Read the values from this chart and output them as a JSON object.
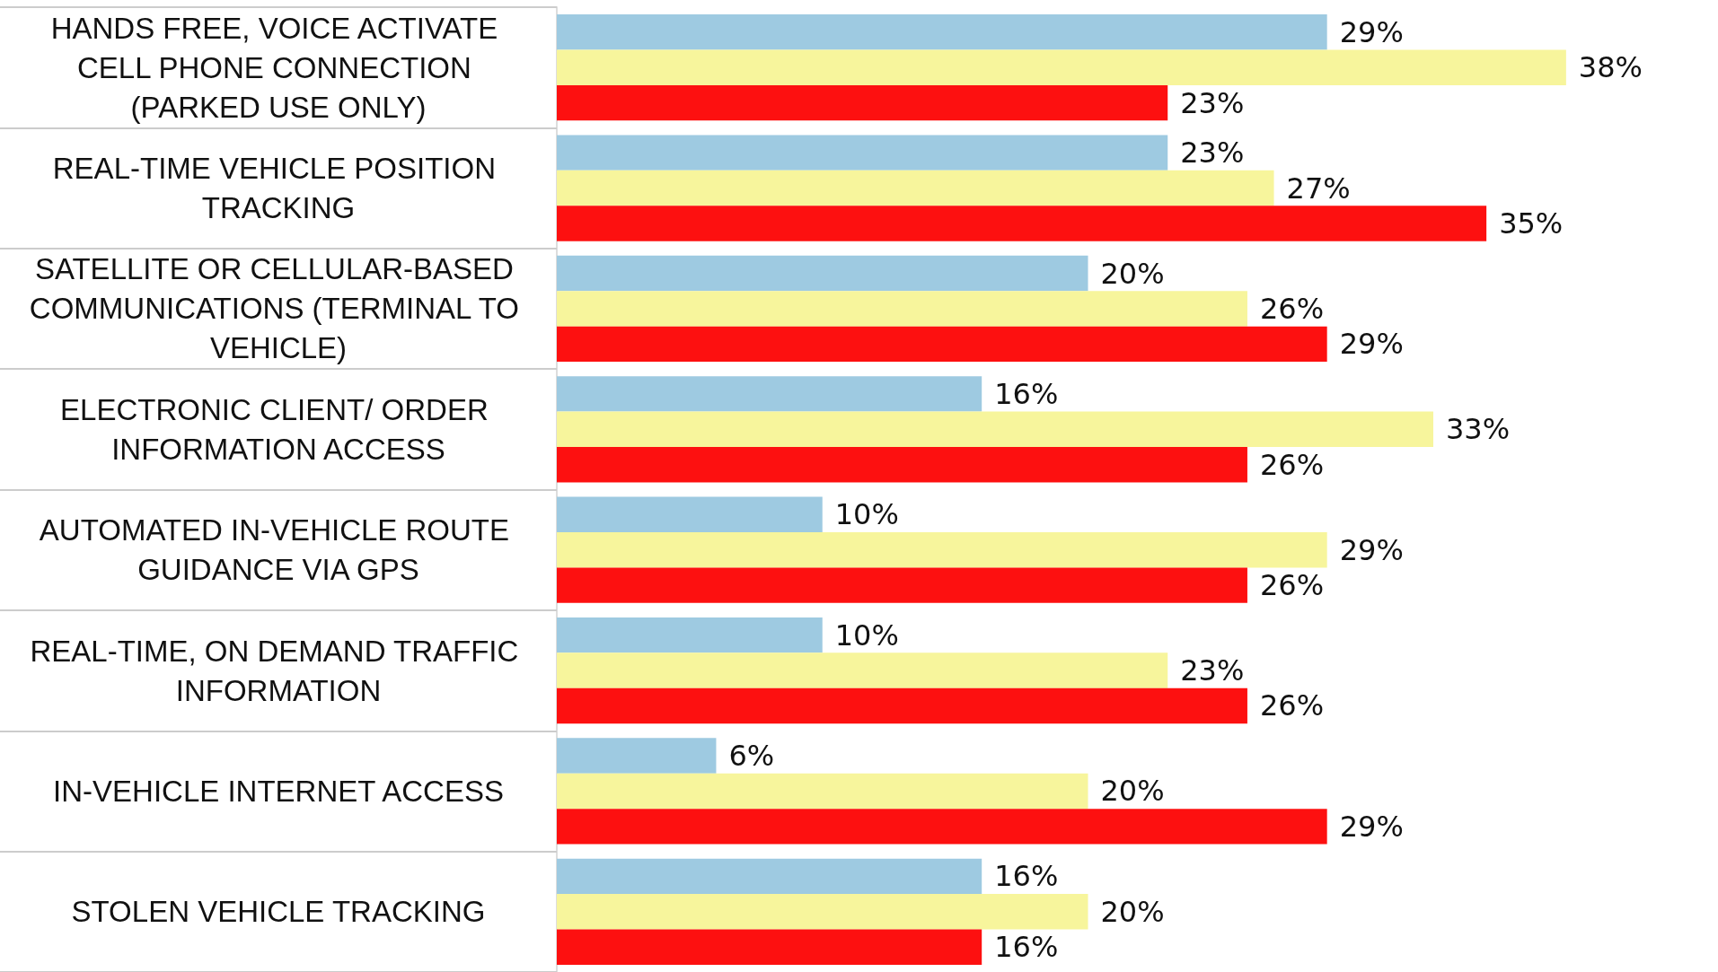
{
  "chart_data": {
    "type": "bar",
    "orientation": "horizontal",
    "categories": [
      "HANDS FREE, VOICE ACTIVATE CELL PHONE CONNECTION (PARKED USE ONLY)",
      "REAL-TIME VEHICLE POSITION TRACKING",
      "SATELLITE OR CELLULAR-BASED COMMUNICATIONS (TERMINAL TO VEHICLE)",
      "ELECTRONIC CLIENT/ ORDER INFORMATION ACCESS",
      "AUTOMATED IN-VEHICLE ROUTE GUIDANCE VIA GPS",
      "REAL-TIME, ON DEMAND TRAFFIC INFORMATION",
      "IN-VEHICLE INTERNET ACCESS",
      "STOLEN VEHICLE TRACKING"
    ],
    "series": [
      {
        "color": "#9ecae1",
        "values": [
          29,
          23,
          20,
          16,
          10,
          10,
          6,
          16
        ],
        "value_labels": [
          "29%",
          "23%",
          "20%",
          "16%",
          "10%",
          "10%",
          "6%",
          "16%"
        ]
      },
      {
        "color": "#f7f59c",
        "values": [
          38,
          27,
          26,
          33,
          29,
          23,
          20,
          20
        ],
        "value_labels": [
          "38%",
          "27%",
          "26%",
          "33%",
          "29%",
          "23%",
          "20%",
          "20%"
        ]
      },
      {
        "color": "#fd1010",
        "values": [
          23,
          35,
          29,
          26,
          26,
          26,
          29,
          16
        ],
        "value_labels": [
          "23%",
          "35%",
          "29%",
          "26%",
          "26%",
          "26%",
          "29%",
          "16%"
        ]
      }
    ],
    "grid": false
  }
}
